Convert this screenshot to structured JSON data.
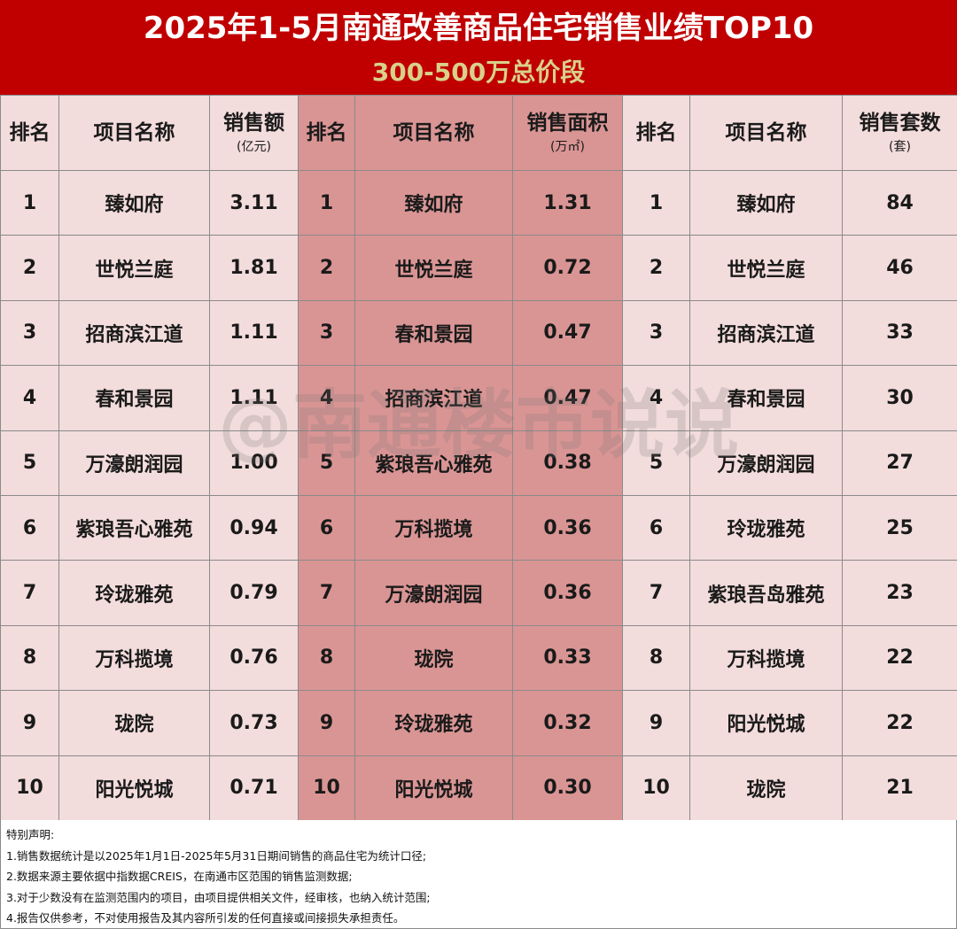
{
  "title": "2025年1-5月南通改善商品住宅销售业绩TOP10",
  "subtitle": "300-500万总价段",
  "watermark": "@南通楼市说说",
  "headers": {
    "rank": "排名",
    "project": "项目名称",
    "sales_amount": "销售额",
    "sales_amount_unit": "(亿元)",
    "sales_area": "销售面积",
    "sales_area_unit": "(万㎡)",
    "sales_units": "销售套数",
    "sales_units_unit": "(套)"
  },
  "rows": [
    {
      "a_rank": "1",
      "a_name": "臻如府",
      "a_value": "3.11",
      "b_rank": "1",
      "b_name": "臻如府",
      "b_value": "1.31",
      "c_rank": "1",
      "c_name": "臻如府",
      "c_value": "84"
    },
    {
      "a_rank": "2",
      "a_name": "世悦兰庭",
      "a_value": "1.81",
      "b_rank": "2",
      "b_name": "世悦兰庭",
      "b_value": "0.72",
      "c_rank": "2",
      "c_name": "世悦兰庭",
      "c_value": "46"
    },
    {
      "a_rank": "3",
      "a_name": "招商滨江道",
      "a_value": "1.11",
      "b_rank": "3",
      "b_name": "春和景园",
      "b_value": "0.47",
      "c_rank": "3",
      "c_name": "招商滨江道",
      "c_value": "33"
    },
    {
      "a_rank": "4",
      "a_name": "春和景园",
      "a_value": "1.11",
      "b_rank": "4",
      "b_name": "招商滨江道",
      "b_value": "0.47",
      "c_rank": "4",
      "c_name": "春和景园",
      "c_value": "30"
    },
    {
      "a_rank": "5",
      "a_name": "万濠朗润园",
      "a_value": "1.00",
      "b_rank": "5",
      "b_name": "紫琅吾心雅苑",
      "b_value": "0.38",
      "c_rank": "5",
      "c_name": "万濠朗润园",
      "c_value": "27"
    },
    {
      "a_rank": "6",
      "a_name": "紫琅吾心雅苑",
      "a_value": "0.94",
      "b_rank": "6",
      "b_name": "万科揽境",
      "b_value": "0.36",
      "c_rank": "6",
      "c_name": "玲珑雅苑",
      "c_value": "25"
    },
    {
      "a_rank": "7",
      "a_name": "玲珑雅苑",
      "a_value": "0.79",
      "b_rank": "7",
      "b_name": "万濠朗润园",
      "b_value": "0.36",
      "c_rank": "7",
      "c_name": "紫琅吾岛雅苑",
      "c_value": "23"
    },
    {
      "a_rank": "8",
      "a_name": "万科揽境",
      "a_value": "0.76",
      "b_rank": "8",
      "b_name": "珑院",
      "b_value": "0.33",
      "c_rank": "8",
      "c_name": "万科揽境",
      "c_value": "22"
    },
    {
      "a_rank": "9",
      "a_name": "珑院",
      "a_value": "0.73",
      "b_rank": "9",
      "b_name": "玲珑雅苑",
      "b_value": "0.32",
      "c_rank": "9",
      "c_name": "阳光悦城",
      "c_value": "22"
    },
    {
      "a_rank": "10",
      "a_name": "阳光悦城",
      "a_value": "0.71",
      "b_rank": "10",
      "b_name": "阳光悦城",
      "b_value": "0.30",
      "c_rank": "10",
      "c_name": "珑院",
      "c_value": "21"
    }
  ],
  "notes": {
    "heading": "特别声明:",
    "lines": [
      "1.销售数据统计是以2025年1月1日-2025年5月31日期间销售的商品住宅为统计口径;",
      "2.数据来源主要依据中指数据CREIS，在南通市区范围的销售监测数据;",
      "3.对于少数没有在监测范围内的项目，由项目提供相关文件，经审核，也纳入统计范围;",
      "4.报告仅供参考，不对使用报告及其内容所引发的任何直接或间接损失承担责任。"
    ]
  }
}
